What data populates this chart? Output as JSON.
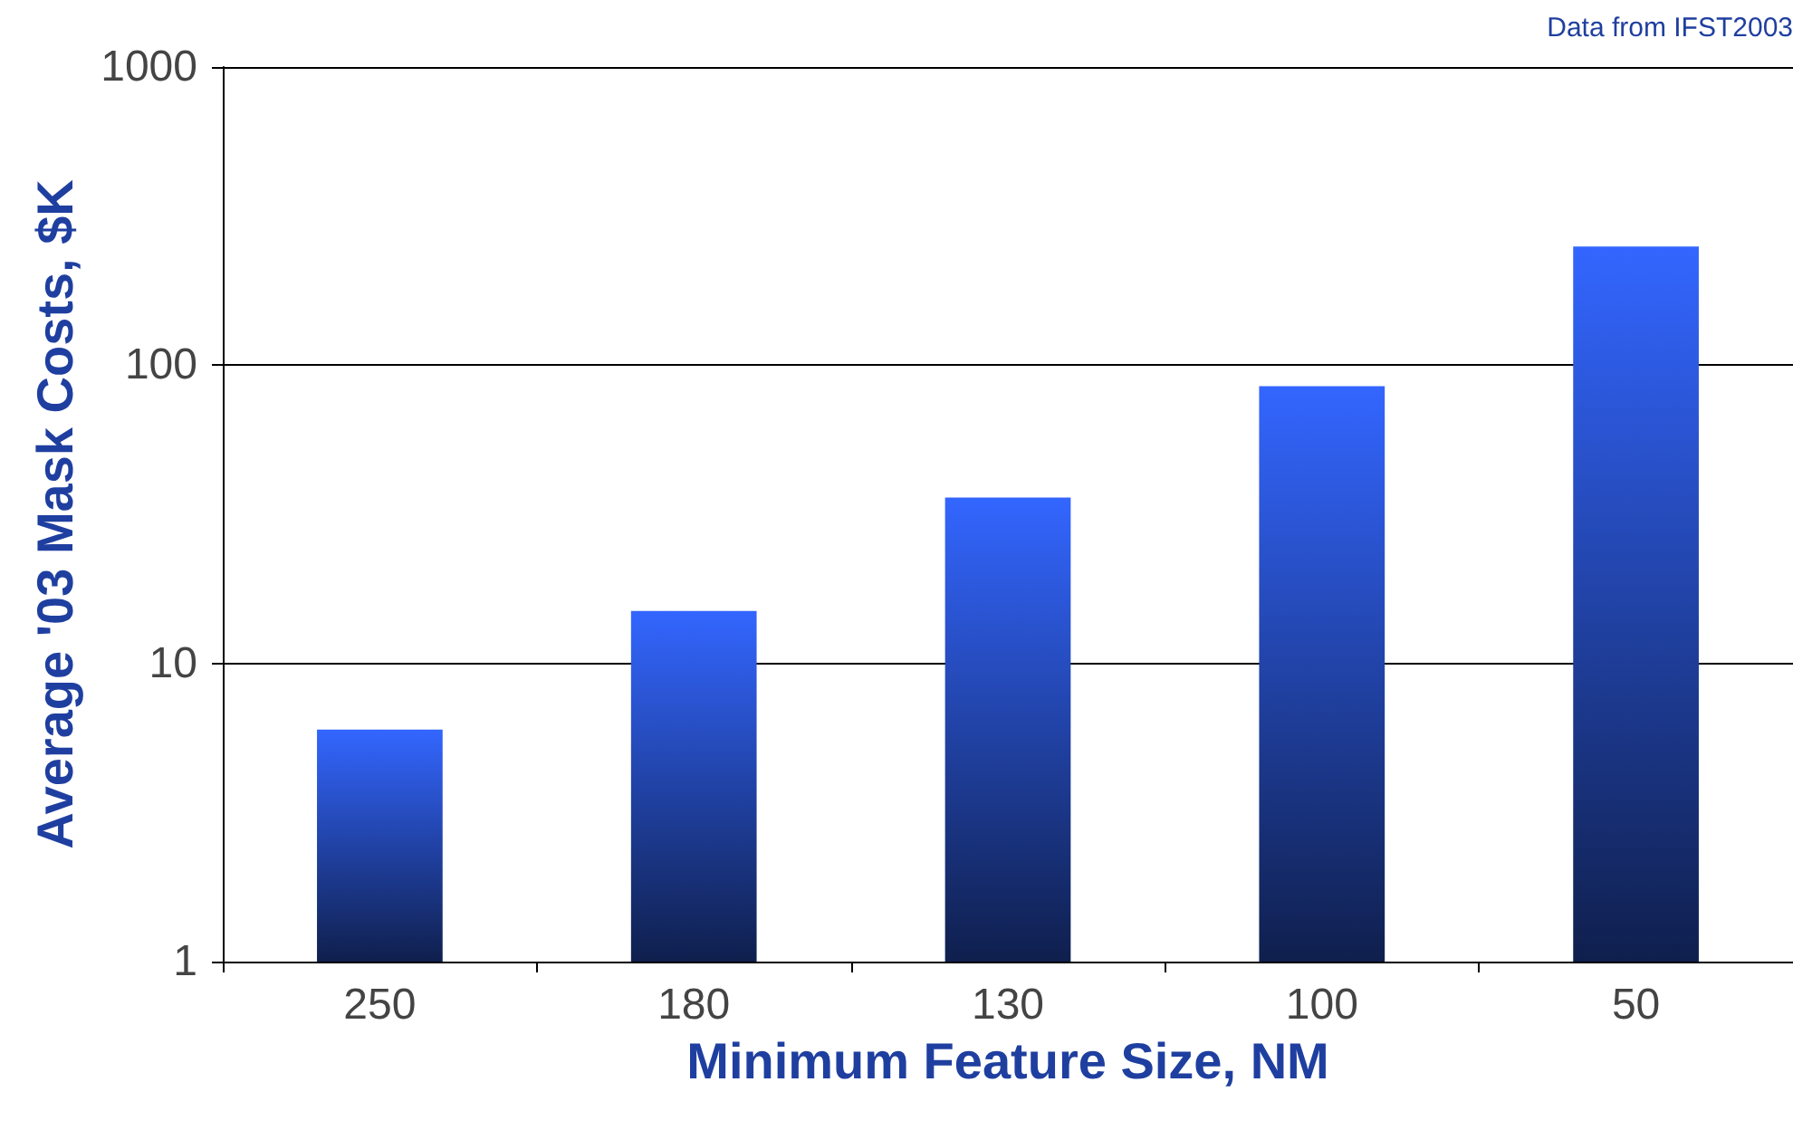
{
  "chart_data": {
    "type": "bar",
    "categories": [
      "250",
      "180",
      "130",
      "100",
      "50"
    ],
    "values": [
      6,
      15,
      36,
      85,
      250
    ],
    "color": "#3366ff",
    "log": true,
    "ylim": [
      1,
      1000
    ],
    "yticks": [
      1,
      10,
      100,
      1000
    ],
    "grid": "y",
    "xlabel": "Minimum Feature Size, NM",
    "ylabel": "Average '03 Mask Costs, $K",
    "annotations": [
      "Data from IFST2003"
    ]
  }
}
